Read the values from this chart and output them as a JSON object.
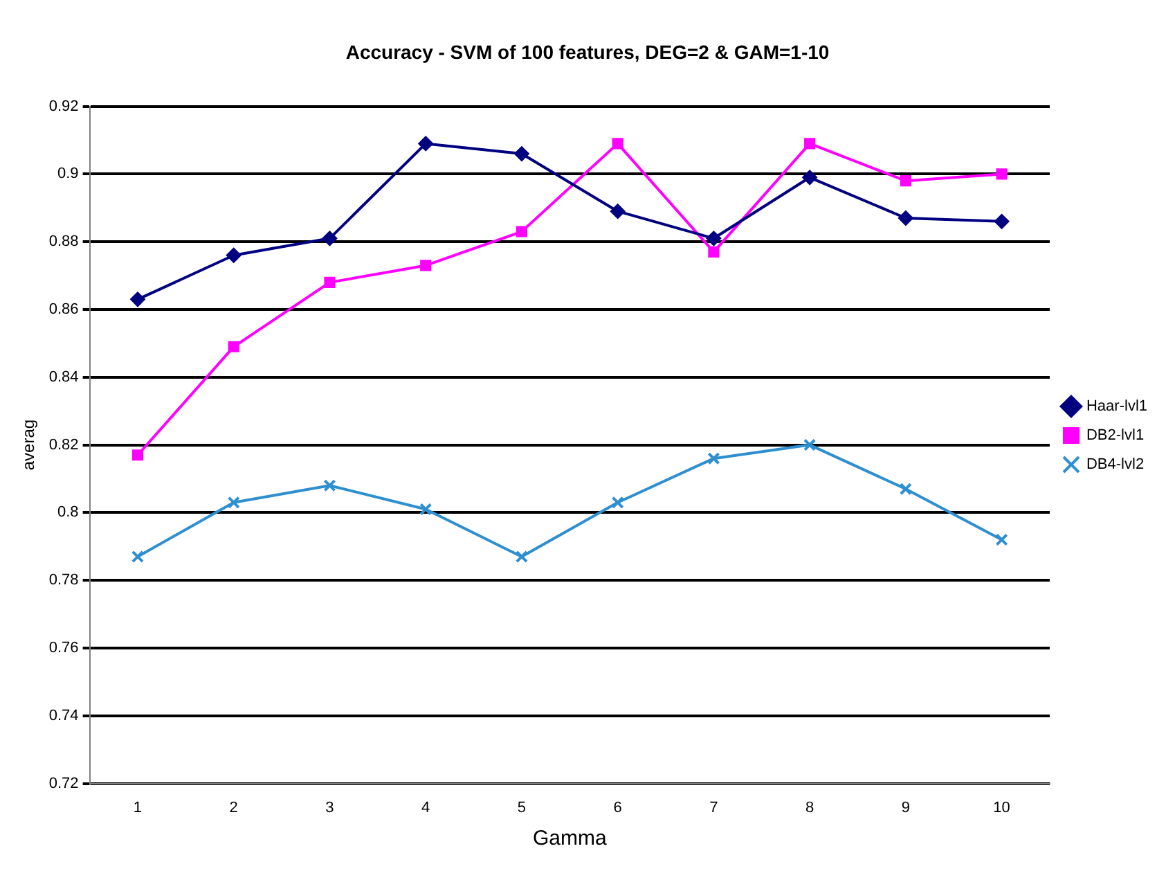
{
  "chart_data": {
    "type": "line",
    "title": "Accuracy - SVM of 100 features, DEG=2 & GAM=1-10",
    "xlabel": "Gamma",
    "ylabel": "averag",
    "categories": [
      "1",
      "2",
      "3",
      "4",
      "5",
      "6",
      "7",
      "8",
      "9",
      "10"
    ],
    "series": [
      {
        "name": "Haar-lvl1",
        "color": "#000080",
        "marker": "diamond",
        "values": [
          0.863,
          0.876,
          0.881,
          0.909,
          0.906,
          0.889,
          0.881,
          0.899,
          0.887,
          0.886
        ]
      },
      {
        "name": "DB2-lvl1",
        "color": "#ff00ff",
        "marker": "square",
        "values": [
          0.817,
          0.849,
          0.868,
          0.873,
          0.883,
          0.909,
          0.877,
          0.909,
          0.898,
          0.9
        ]
      },
      {
        "name": "DB4-lvl2",
        "color": "#2e8fd0",
        "marker": "cross",
        "values": [
          0.787,
          0.803,
          0.808,
          0.801,
          0.787,
          0.803,
          0.816,
          0.82,
          0.807,
          0.792
        ]
      }
    ],
    "ylim": [
      0.72,
      0.92
    ],
    "yticks": [
      0.72,
      0.74,
      0.76,
      0.78,
      0.8,
      0.82,
      0.84,
      0.86,
      0.88,
      0.9,
      0.92
    ],
    "grid": "y",
    "legend": "right",
    "line_style": "solid"
  }
}
